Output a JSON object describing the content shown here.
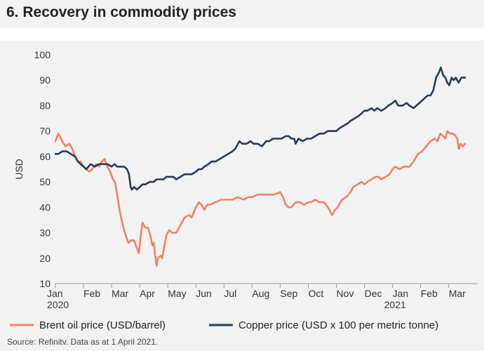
{
  "page": {
    "title": "6. Recovery in commodity prices",
    "source": "Source: Refinitv. Data as at 1 April 2021."
  },
  "colors": {
    "brent": "#f08262",
    "copper": "#283a54",
    "background": "#f2f2f2",
    "axis": "#999999"
  },
  "chart_data": {
    "type": "line",
    "title": "6. Recovery in commodity prices",
    "xlabel": "",
    "ylabel": "USD",
    "ylim": [
      10,
      100
    ],
    "yticks": [
      10,
      20,
      30,
      40,
      50,
      60,
      70,
      80,
      90,
      100
    ],
    "x_unit": "months since 1 Jan 2020",
    "xlim": [
      0,
      15.03
    ],
    "xticks": [
      {
        "value": 0,
        "label": "Jan",
        "year": "2020"
      },
      {
        "value": 1,
        "label": "Feb",
        "year": ""
      },
      {
        "value": 2,
        "label": "Mar",
        "year": ""
      },
      {
        "value": 3,
        "label": "Apr",
        "year": ""
      },
      {
        "value": 4,
        "label": "May",
        "year": ""
      },
      {
        "value": 5,
        "label": "Jun",
        "year": ""
      },
      {
        "value": 6,
        "label": "Jul",
        "year": ""
      },
      {
        "value": 7,
        "label": "Aug",
        "year": ""
      },
      {
        "value": 8,
        "label": "Sep",
        "year": ""
      },
      {
        "value": 9,
        "label": "Oct",
        "year": ""
      },
      {
        "value": 10,
        "label": "Nov",
        "year": ""
      },
      {
        "value": 11,
        "label": "Dec",
        "year": ""
      },
      {
        "value": 12,
        "label": "Jan",
        "year": "2021"
      },
      {
        "value": 13,
        "label": "Feb",
        "year": ""
      },
      {
        "value": 14,
        "label": "Mar",
        "year": ""
      }
    ],
    "series": [
      {
        "name": "Brent oil price (USD/barrel)",
        "color": "#f08262",
        "points": [
          [
            0.0,
            66
          ],
          [
            0.1,
            69
          ],
          [
            0.2,
            67
          ],
          [
            0.35,
            64
          ],
          [
            0.5,
            65
          ],
          [
            0.6,
            63
          ],
          [
            0.7,
            60
          ],
          [
            0.8,
            58
          ],
          [
            0.9,
            58
          ],
          [
            1.0,
            56
          ],
          [
            1.1,
            55
          ],
          [
            1.2,
            54
          ],
          [
            1.3,
            55
          ],
          [
            1.45,
            57
          ],
          [
            1.55,
            56
          ],
          [
            1.65,
            58
          ],
          [
            1.75,
            59
          ],
          [
            1.85,
            56
          ],
          [
            1.95,
            54
          ],
          [
            2.05,
            51
          ],
          [
            2.12,
            50
          ],
          [
            2.2,
            45
          ],
          [
            2.3,
            38
          ],
          [
            2.4,
            33
          ],
          [
            2.5,
            29
          ],
          [
            2.6,
            26
          ],
          [
            2.7,
            27
          ],
          [
            2.8,
            27
          ],
          [
            2.9,
            24
          ],
          [
            2.97,
            22
          ],
          [
            3.05,
            30
          ],
          [
            3.1,
            34
          ],
          [
            3.2,
            32
          ],
          [
            3.3,
            32
          ],
          [
            3.4,
            28
          ],
          [
            3.45,
            25
          ],
          [
            3.5,
            26
          ],
          [
            3.55,
            21
          ],
          [
            3.6,
            17
          ],
          [
            3.65,
            20
          ],
          [
            3.75,
            21
          ],
          [
            3.8,
            20
          ],
          [
            3.9,
            26
          ],
          [
            3.95,
            29
          ],
          [
            4.05,
            31
          ],
          [
            4.15,
            30
          ],
          [
            4.3,
            30
          ],
          [
            4.5,
            34
          ],
          [
            4.6,
            36
          ],
          [
            4.75,
            37
          ],
          [
            4.85,
            36
          ],
          [
            5.0,
            40
          ],
          [
            5.1,
            42
          ],
          [
            5.2,
            41
          ],
          [
            5.3,
            39
          ],
          [
            5.4,
            41
          ],
          [
            5.5,
            41
          ],
          [
            5.7,
            42
          ],
          [
            5.9,
            43
          ],
          [
            6.1,
            43
          ],
          [
            6.3,
            43
          ],
          [
            6.5,
            44
          ],
          [
            6.7,
            43
          ],
          [
            6.85,
            44
          ],
          [
            7.0,
            44
          ],
          [
            7.2,
            45
          ],
          [
            7.4,
            45
          ],
          [
            7.6,
            45
          ],
          [
            7.8,
            45
          ],
          [
            8.0,
            46
          ],
          [
            8.1,
            44
          ],
          [
            8.2,
            41
          ],
          [
            8.3,
            40
          ],
          [
            8.4,
            40
          ],
          [
            8.55,
            42
          ],
          [
            8.7,
            42
          ],
          [
            8.85,
            41
          ],
          [
            9.0,
            42
          ],
          [
            9.1,
            42
          ],
          [
            9.25,
            43
          ],
          [
            9.4,
            42
          ],
          [
            9.55,
            42
          ],
          [
            9.7,
            40
          ],
          [
            9.8,
            38
          ],
          [
            9.85,
            37
          ],
          [
            9.95,
            39
          ],
          [
            10.05,
            40
          ],
          [
            10.2,
            43
          ],
          [
            10.35,
            44
          ],
          [
            10.5,
            46
          ],
          [
            10.6,
            48
          ],
          [
            10.75,
            49
          ],
          [
            10.9,
            50
          ],
          [
            11.0,
            49
          ],
          [
            11.1,
            50
          ],
          [
            11.25,
            51
          ],
          [
            11.4,
            52
          ],
          [
            11.5,
            52
          ],
          [
            11.6,
            51
          ],
          [
            11.75,
            52
          ],
          [
            11.9,
            53
          ],
          [
            12.0,
            55
          ],
          [
            12.1,
            56
          ],
          [
            12.25,
            55
          ],
          [
            12.4,
            56
          ],
          [
            12.5,
            56
          ],
          [
            12.6,
            56
          ],
          [
            12.75,
            58
          ],
          [
            12.9,
            61
          ],
          [
            13.05,
            62
          ],
          [
            13.2,
            64
          ],
          [
            13.35,
            66
          ],
          [
            13.5,
            67
          ],
          [
            13.6,
            66
          ],
          [
            13.7,
            69
          ],
          [
            13.8,
            68
          ],
          [
            13.88,
            67
          ],
          [
            13.95,
            70
          ],
          [
            14.05,
            69
          ],
          [
            14.15,
            69
          ],
          [
            14.25,
            68
          ],
          [
            14.3,
            67
          ],
          [
            14.36,
            63
          ],
          [
            14.42,
            65
          ],
          [
            14.5,
            64
          ],
          [
            14.58,
            65
          ]
        ]
      },
      {
        "name": "Copper price (USD x 100 per metric tonne)",
        "color": "#283a54",
        "points": [
          [
            0.0,
            61
          ],
          [
            0.1,
            61
          ],
          [
            0.25,
            62
          ],
          [
            0.4,
            62
          ],
          [
            0.55,
            61
          ],
          [
            0.7,
            60
          ],
          [
            0.8,
            58
          ],
          [
            0.9,
            57
          ],
          [
            1.0,
            56
          ],
          [
            1.1,
            55
          ],
          [
            1.25,
            57
          ],
          [
            1.4,
            56
          ],
          [
            1.55,
            57
          ],
          [
            1.7,
            57
          ],
          [
            1.85,
            57
          ],
          [
            2.0,
            56
          ],
          [
            2.1,
            57
          ],
          [
            2.2,
            56
          ],
          [
            2.3,
            56
          ],
          [
            2.45,
            56
          ],
          [
            2.55,
            55
          ],
          [
            2.62,
            53
          ],
          [
            2.68,
            48
          ],
          [
            2.72,
            47
          ],
          [
            2.8,
            48
          ],
          [
            2.9,
            47
          ],
          [
            3.0,
            48
          ],
          [
            3.1,
            49
          ],
          [
            3.2,
            49
          ],
          [
            3.35,
            50
          ],
          [
            3.5,
            50
          ],
          [
            3.6,
            51
          ],
          [
            3.7,
            51
          ],
          [
            3.85,
            51
          ],
          [
            3.95,
            52
          ],
          [
            4.05,
            52
          ],
          [
            4.2,
            52
          ],
          [
            4.3,
            51
          ],
          [
            4.45,
            52
          ],
          [
            4.6,
            53
          ],
          [
            4.75,
            53
          ],
          [
            4.85,
            53
          ],
          [
            5.0,
            54
          ],
          [
            5.1,
            55
          ],
          [
            5.2,
            55
          ],
          [
            5.3,
            56
          ],
          [
            5.45,
            57
          ],
          [
            5.55,
            58
          ],
          [
            5.7,
            58
          ],
          [
            5.85,
            59
          ],
          [
            6.0,
            60
          ],
          [
            6.15,
            61
          ],
          [
            6.3,
            62
          ],
          [
            6.4,
            63
          ],
          [
            6.5,
            65
          ],
          [
            6.55,
            66
          ],
          [
            6.65,
            65
          ],
          [
            6.8,
            65
          ],
          [
            6.95,
            66
          ],
          [
            7.05,
            65
          ],
          [
            7.2,
            65
          ],
          [
            7.35,
            64
          ],
          [
            7.5,
            66
          ],
          [
            7.6,
            66
          ],
          [
            7.75,
            67
          ],
          [
            7.9,
            67
          ],
          [
            8.05,
            67
          ],
          [
            8.2,
            68
          ],
          [
            8.3,
            68
          ],
          [
            8.4,
            67
          ],
          [
            8.5,
            67
          ],
          [
            8.55,
            65
          ],
          [
            8.65,
            67
          ],
          [
            8.8,
            66
          ],
          [
            8.95,
            67
          ],
          [
            9.1,
            67
          ],
          [
            9.25,
            68
          ],
          [
            9.4,
            69
          ],
          [
            9.55,
            69
          ],
          [
            9.7,
            70
          ],
          [
            9.85,
            70
          ],
          [
            10.0,
            70
          ],
          [
            10.1,
            71
          ],
          [
            10.25,
            72
          ],
          [
            10.4,
            73
          ],
          [
            10.5,
            74
          ],
          [
            10.65,
            75
          ],
          [
            10.8,
            76
          ],
          [
            10.9,
            77
          ],
          [
            11.0,
            78
          ],
          [
            11.1,
            78
          ],
          [
            11.25,
            79
          ],
          [
            11.35,
            78
          ],
          [
            11.45,
            79
          ],
          [
            11.6,
            78
          ],
          [
            11.75,
            79
          ],
          [
            11.85,
            80
          ],
          [
            12.0,
            81
          ],
          [
            12.1,
            82
          ],
          [
            12.2,
            80
          ],
          [
            12.35,
            80
          ],
          [
            12.5,
            81
          ],
          [
            12.6,
            80
          ],
          [
            12.75,
            79
          ],
          [
            12.85,
            80
          ],
          [
            12.95,
            81
          ],
          [
            13.05,
            82
          ],
          [
            13.15,
            83
          ],
          [
            13.25,
            84
          ],
          [
            13.35,
            84
          ],
          [
            13.45,
            86
          ],
          [
            13.55,
            91
          ],
          [
            13.65,
            93
          ],
          [
            13.72,
            95
          ],
          [
            13.8,
            92
          ],
          [
            13.88,
            91
          ],
          [
            13.95,
            89
          ],
          [
            14.02,
            88
          ],
          [
            14.1,
            91
          ],
          [
            14.18,
            90
          ],
          [
            14.25,
            91
          ],
          [
            14.35,
            89
          ],
          [
            14.45,
            91
          ],
          [
            14.58,
            91
          ]
        ]
      }
    ],
    "legend": "bottom"
  }
}
